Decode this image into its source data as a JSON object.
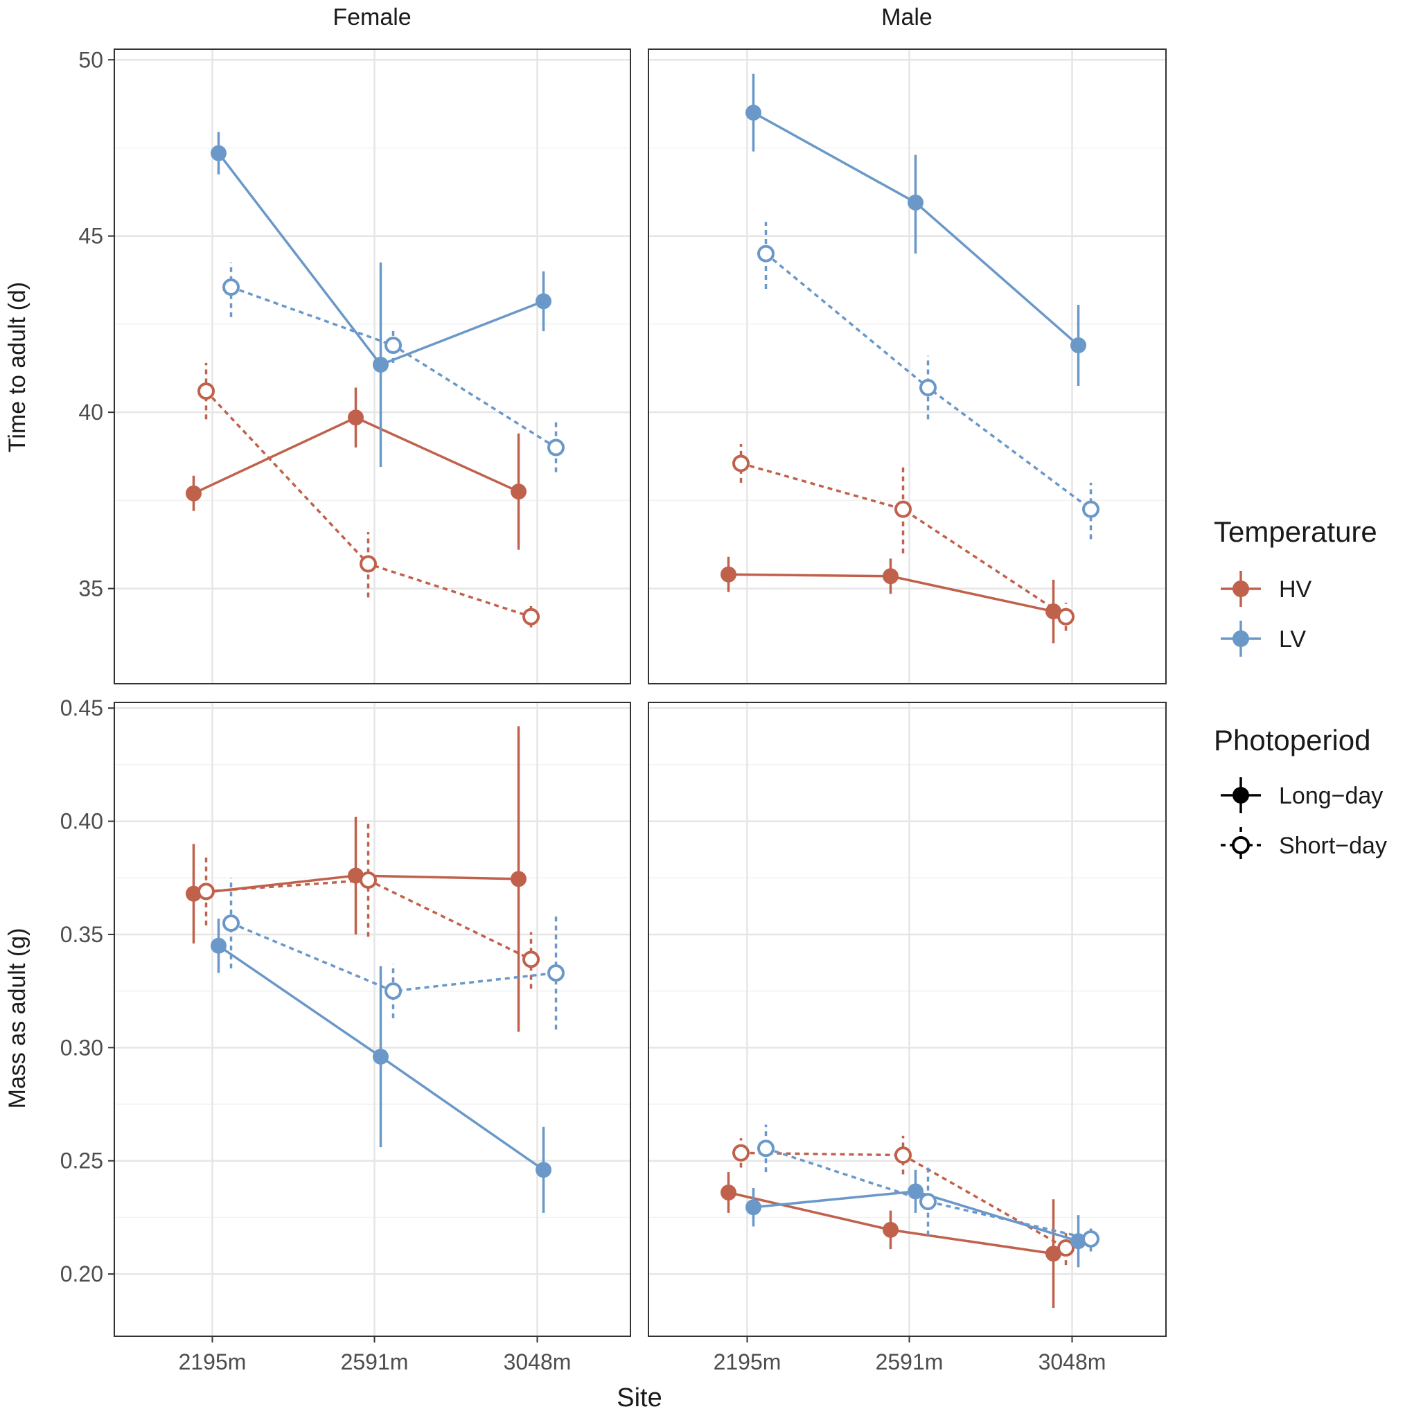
{
  "chart_data": {
    "type": "line",
    "facet_columns": [
      "Female",
      "Male"
    ],
    "xlabel": "Site",
    "x_categories": [
      "2195m",
      "2591m",
      "3048m"
    ],
    "legend": {
      "temperature": {
        "title": "Temperature",
        "entries": [
          {
            "label": "HV",
            "color": "#C0614B"
          },
          {
            "label": "LV",
            "color": "#6A98C8"
          }
        ]
      },
      "photoperiod": {
        "title": "Photoperiod",
        "entries": [
          {
            "label": "Long−day",
            "style": "solid"
          },
          {
            "label": "Short−day",
            "style": "dashed"
          }
        ]
      },
      "placement": "right"
    },
    "rows": [
      {
        "ylabel": "Time to adult (d)",
        "ylim": [
          32.3,
          50.3
        ],
        "yticks": [
          35,
          40,
          45,
          50
        ],
        "ytick_labels": [
          "35",
          "40",
          "45",
          "50"
        ],
        "panels": [
          {
            "facet": "Female",
            "series": [
              {
                "temperature": "HV",
                "photoperiod": "Long-day",
                "values": [
                  37.7,
                  39.85,
                  37.75
                ],
                "lower": [
                  37.2,
                  39.0,
                  36.1
                ],
                "upper": [
                  38.2,
                  40.7,
                  39.4
                ]
              },
              {
                "temperature": "HV",
                "photoperiod": "Short-day",
                "values": [
                  40.6,
                  35.7,
                  34.2
                ],
                "lower": [
                  39.8,
                  34.75,
                  33.9
                ],
                "upper": [
                  41.4,
                  36.6,
                  34.5
                ]
              },
              {
                "temperature": "LV",
                "photoperiod": "Long-day",
                "values": [
                  47.35,
                  41.35,
                  43.15
                ],
                "lower": [
                  46.75,
                  38.45,
                  42.3
                ],
                "upper": [
                  47.95,
                  44.25,
                  44.0
                ]
              },
              {
                "temperature": "LV",
                "photoperiod": "Short-day",
                "values": [
                  43.55,
                  41.9,
                  39.0
                ],
                "lower": [
                  42.7,
                  41.4,
                  38.3
                ],
                "upper": [
                  44.25,
                  42.4,
                  39.75
                ]
              }
            ]
          },
          {
            "facet": "Male",
            "series": [
              {
                "temperature": "HV",
                "photoperiod": "Long-day",
                "values": [
                  35.4,
                  35.35,
                  34.35
                ],
                "lower": [
                  34.9,
                  34.85,
                  33.45
                ],
                "upper": [
                  35.9,
                  35.85,
                  35.25
                ]
              },
              {
                "temperature": "HV",
                "photoperiod": "Short-day",
                "values": [
                  38.55,
                  37.25,
                  34.2
                ],
                "lower": [
                  38.0,
                  36.0,
                  33.8
                ],
                "upper": [
                  39.1,
                  38.5,
                  34.6
                ]
              },
              {
                "temperature": "LV",
                "photoperiod": "Long-day",
                "values": [
                  48.5,
                  45.95,
                  41.9
                ],
                "lower": [
                  47.4,
                  44.5,
                  40.75
                ],
                "upper": [
                  49.6,
                  47.3,
                  43.05
                ]
              },
              {
                "temperature": "LV",
                "photoperiod": "Short-day",
                "values": [
                  44.5,
                  40.7,
                  37.25
                ],
                "lower": [
                  43.5,
                  39.8,
                  36.4
                ],
                "upper": [
                  45.4,
                  41.6,
                  38.0
                ]
              }
            ]
          }
        ]
      },
      {
        "ylabel": "Mass as adult (g)",
        "ylim": [
          0.1725,
          0.4525
        ],
        "yticks": [
          0.2,
          0.25,
          0.3,
          0.35,
          0.4,
          0.45
        ],
        "ytick_labels": [
          "0.20",
          "0.25",
          "0.30",
          "0.35",
          "0.40",
          "0.45"
        ],
        "panels": [
          {
            "facet": "Female",
            "series": [
              {
                "temperature": "HV",
                "photoperiod": "Long-day",
                "values": [
                  0.368,
                  0.376,
                  0.3745
                ],
                "lower": [
                  0.346,
                  0.35,
                  0.307
                ],
                "upper": [
                  0.39,
                  0.402,
                  0.442
                ]
              },
              {
                "temperature": "HV",
                "photoperiod": "Short-day",
                "values": [
                  0.369,
                  0.374,
                  0.339
                ],
                "lower": [
                  0.354,
                  0.349,
                  0.326
                ],
                "upper": [
                  0.384,
                  0.399,
                  0.351
                ]
              },
              {
                "temperature": "LV",
                "photoperiod": "Long-day",
                "values": [
                  0.345,
                  0.296,
                  0.246
                ],
                "lower": [
                  0.333,
                  0.256,
                  0.227
                ],
                "upper": [
                  0.357,
                  0.336,
                  0.265
                ]
              },
              {
                "temperature": "LV",
                "photoperiod": "Short-day",
                "values": [
                  0.355,
                  0.325,
                  0.333
                ],
                "lower": [
                  0.335,
                  0.313,
                  0.308
                ],
                "upper": [
                  0.375,
                  0.337,
                  0.358
                ]
              }
            ]
          },
          {
            "facet": "Male",
            "series": [
              {
                "temperature": "HV",
                "photoperiod": "Long-day",
                "values": [
                  0.236,
                  0.2195,
                  0.209
                ],
                "lower": [
                  0.227,
                  0.211,
                  0.185
                ],
                "upper": [
                  0.245,
                  0.228,
                  0.233
                ]
              },
              {
                "temperature": "HV",
                "photoperiod": "Short-day",
                "values": [
                  0.2535,
                  0.2525,
                  0.2115
                ],
                "lower": [
                  0.247,
                  0.244,
                  0.204
                ],
                "upper": [
                  0.26,
                  0.261,
                  0.219
                ]
              },
              {
                "temperature": "LV",
                "photoperiod": "Long-day",
                "values": [
                  0.2295,
                  0.2365,
                  0.2145
                ],
                "lower": [
                  0.221,
                  0.227,
                  0.203
                ],
                "upper": [
                  0.238,
                  0.246,
                  0.226
                ]
              },
              {
                "temperature": "LV",
                "photoperiod": "Short-day",
                "values": [
                  0.2555,
                  0.232,
                  0.2155
                ],
                "lower": [
                  0.245,
                  0.217,
                  0.21
                ],
                "upper": [
                  0.266,
                  0.247,
                  0.221
                ]
              }
            ]
          }
        ]
      }
    ]
  }
}
